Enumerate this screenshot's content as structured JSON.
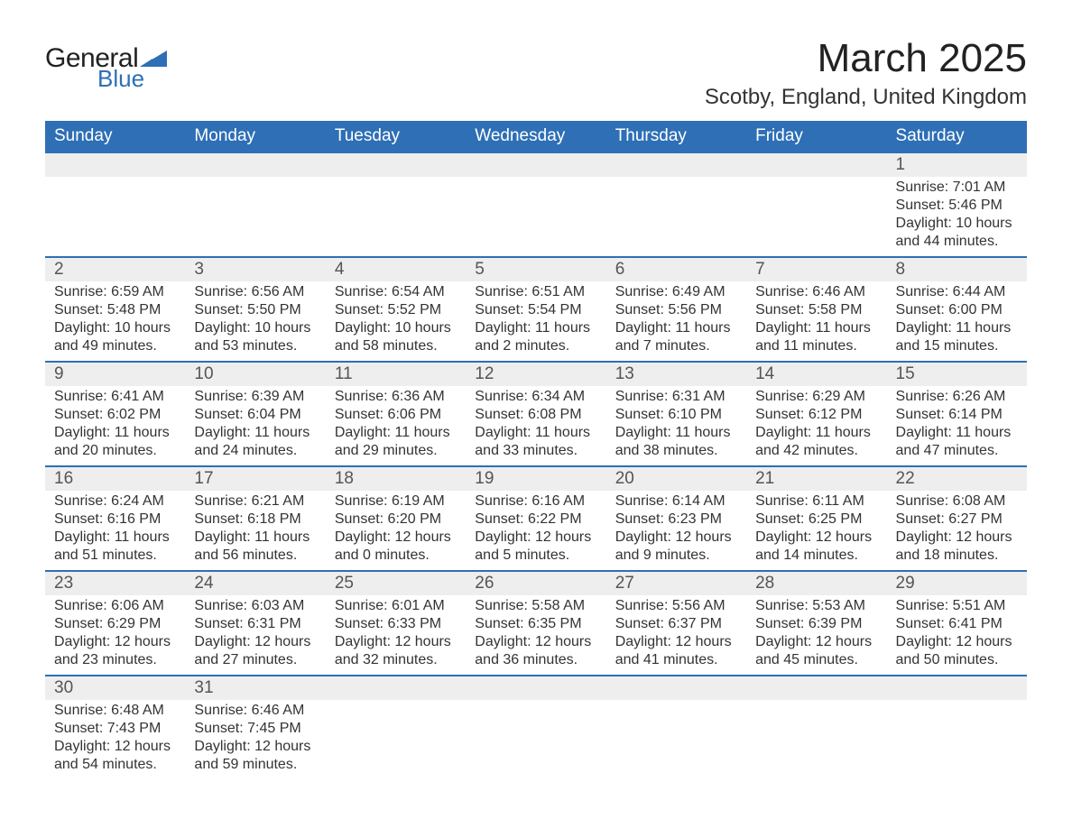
{
  "logo": {
    "text1": "General",
    "text2": "Blue",
    "accent_color": "#2e6fb5"
  },
  "title": "March 2025",
  "location": "Scotby, England, United Kingdom",
  "colors": {
    "header_bg": "#2e6fb5",
    "header_text": "#ffffff",
    "daynum_bg": "#eeeeee",
    "row_divider": "#2e6fb5",
    "body_text": "#333333"
  },
  "day_headers": [
    "Sunday",
    "Monday",
    "Tuesday",
    "Wednesday",
    "Thursday",
    "Friday",
    "Saturday"
  ],
  "weeks": [
    [
      null,
      null,
      null,
      null,
      null,
      null,
      {
        "d": "1",
        "sr": "Sunrise: 7:01 AM",
        "ss": "Sunset: 5:46 PM",
        "dl": "Daylight: 10 hours and 44 minutes."
      }
    ],
    [
      {
        "d": "2",
        "sr": "Sunrise: 6:59 AM",
        "ss": "Sunset: 5:48 PM",
        "dl": "Daylight: 10 hours and 49 minutes."
      },
      {
        "d": "3",
        "sr": "Sunrise: 6:56 AM",
        "ss": "Sunset: 5:50 PM",
        "dl": "Daylight: 10 hours and 53 minutes."
      },
      {
        "d": "4",
        "sr": "Sunrise: 6:54 AM",
        "ss": "Sunset: 5:52 PM",
        "dl": "Daylight: 10 hours and 58 minutes."
      },
      {
        "d": "5",
        "sr": "Sunrise: 6:51 AM",
        "ss": "Sunset: 5:54 PM",
        "dl": "Daylight: 11 hours and 2 minutes."
      },
      {
        "d": "6",
        "sr": "Sunrise: 6:49 AM",
        "ss": "Sunset: 5:56 PM",
        "dl": "Daylight: 11 hours and 7 minutes."
      },
      {
        "d": "7",
        "sr": "Sunrise: 6:46 AM",
        "ss": "Sunset: 5:58 PM",
        "dl": "Daylight: 11 hours and 11 minutes."
      },
      {
        "d": "8",
        "sr": "Sunrise: 6:44 AM",
        "ss": "Sunset: 6:00 PM",
        "dl": "Daylight: 11 hours and 15 minutes."
      }
    ],
    [
      {
        "d": "9",
        "sr": "Sunrise: 6:41 AM",
        "ss": "Sunset: 6:02 PM",
        "dl": "Daylight: 11 hours and 20 minutes."
      },
      {
        "d": "10",
        "sr": "Sunrise: 6:39 AM",
        "ss": "Sunset: 6:04 PM",
        "dl": "Daylight: 11 hours and 24 minutes."
      },
      {
        "d": "11",
        "sr": "Sunrise: 6:36 AM",
        "ss": "Sunset: 6:06 PM",
        "dl": "Daylight: 11 hours and 29 minutes."
      },
      {
        "d": "12",
        "sr": "Sunrise: 6:34 AM",
        "ss": "Sunset: 6:08 PM",
        "dl": "Daylight: 11 hours and 33 minutes."
      },
      {
        "d": "13",
        "sr": "Sunrise: 6:31 AM",
        "ss": "Sunset: 6:10 PM",
        "dl": "Daylight: 11 hours and 38 minutes."
      },
      {
        "d": "14",
        "sr": "Sunrise: 6:29 AM",
        "ss": "Sunset: 6:12 PM",
        "dl": "Daylight: 11 hours and 42 minutes."
      },
      {
        "d": "15",
        "sr": "Sunrise: 6:26 AM",
        "ss": "Sunset: 6:14 PM",
        "dl": "Daylight: 11 hours and 47 minutes."
      }
    ],
    [
      {
        "d": "16",
        "sr": "Sunrise: 6:24 AM",
        "ss": "Sunset: 6:16 PM",
        "dl": "Daylight: 11 hours and 51 minutes."
      },
      {
        "d": "17",
        "sr": "Sunrise: 6:21 AM",
        "ss": "Sunset: 6:18 PM",
        "dl": "Daylight: 11 hours and 56 minutes."
      },
      {
        "d": "18",
        "sr": "Sunrise: 6:19 AM",
        "ss": "Sunset: 6:20 PM",
        "dl": "Daylight: 12 hours and 0 minutes."
      },
      {
        "d": "19",
        "sr": "Sunrise: 6:16 AM",
        "ss": "Sunset: 6:22 PM",
        "dl": "Daylight: 12 hours and 5 minutes."
      },
      {
        "d": "20",
        "sr": "Sunrise: 6:14 AM",
        "ss": "Sunset: 6:23 PM",
        "dl": "Daylight: 12 hours and 9 minutes."
      },
      {
        "d": "21",
        "sr": "Sunrise: 6:11 AM",
        "ss": "Sunset: 6:25 PM",
        "dl": "Daylight: 12 hours and 14 minutes."
      },
      {
        "d": "22",
        "sr": "Sunrise: 6:08 AM",
        "ss": "Sunset: 6:27 PM",
        "dl": "Daylight: 12 hours and 18 minutes."
      }
    ],
    [
      {
        "d": "23",
        "sr": "Sunrise: 6:06 AM",
        "ss": "Sunset: 6:29 PM",
        "dl": "Daylight: 12 hours and 23 minutes."
      },
      {
        "d": "24",
        "sr": "Sunrise: 6:03 AM",
        "ss": "Sunset: 6:31 PM",
        "dl": "Daylight: 12 hours and 27 minutes."
      },
      {
        "d": "25",
        "sr": "Sunrise: 6:01 AM",
        "ss": "Sunset: 6:33 PM",
        "dl": "Daylight: 12 hours and 32 minutes."
      },
      {
        "d": "26",
        "sr": "Sunrise: 5:58 AM",
        "ss": "Sunset: 6:35 PM",
        "dl": "Daylight: 12 hours and 36 minutes."
      },
      {
        "d": "27",
        "sr": "Sunrise: 5:56 AM",
        "ss": "Sunset: 6:37 PM",
        "dl": "Daylight: 12 hours and 41 minutes."
      },
      {
        "d": "28",
        "sr": "Sunrise: 5:53 AM",
        "ss": "Sunset: 6:39 PM",
        "dl": "Daylight: 12 hours and 45 minutes."
      },
      {
        "d": "29",
        "sr": "Sunrise: 5:51 AM",
        "ss": "Sunset: 6:41 PM",
        "dl": "Daylight: 12 hours and 50 minutes."
      }
    ],
    [
      {
        "d": "30",
        "sr": "Sunrise: 6:48 AM",
        "ss": "Sunset: 7:43 PM",
        "dl": "Daylight: 12 hours and 54 minutes."
      },
      {
        "d": "31",
        "sr": "Sunrise: 6:46 AM",
        "ss": "Sunset: 7:45 PM",
        "dl": "Daylight: 12 hours and 59 minutes."
      },
      null,
      null,
      null,
      null,
      null
    ]
  ]
}
